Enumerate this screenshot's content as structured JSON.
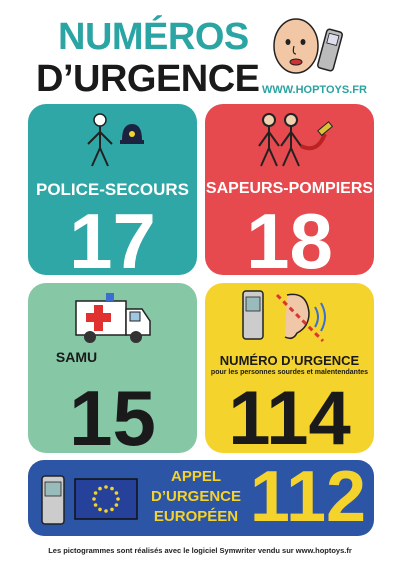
{
  "header": {
    "title_line1": "NUMÉROS",
    "title_line2": "D’URGENCE",
    "website": "WWW.HOPTOYS.FR"
  },
  "cards": [
    {
      "label": "POLICE-SECOURS",
      "number": "17",
      "color": "#2fa7a6"
    },
    {
      "label": "SAPEURS-POMPIERS",
      "number": "18",
      "color": "#e64a4e"
    },
    {
      "label": "SAMU",
      "number": "15",
      "color": "#86c7a6"
    },
    {
      "label": "NUMÉRO D’URGENCE",
      "sublabel": "pour les personnes sourdes et malentendantes",
      "number": "114",
      "color": "#f4d32c"
    }
  ],
  "europe": {
    "line1": "APPEL",
    "line2": "D’URGENCE",
    "line3": "EUROPÉEN",
    "number": "112",
    "color": "#2d55a5",
    "accent": "#f4d32c"
  },
  "footer": "Les pictogrammes sont réalisés avec le logiciel Symwriter vendu sur www.hoptoys.fr",
  "icons": [
    "face-icon",
    "phone-icon",
    "police-officer-icon",
    "firefighters-icon",
    "ambulance-icon",
    "deaf-phone-icon",
    "eu-flag-icon"
  ]
}
